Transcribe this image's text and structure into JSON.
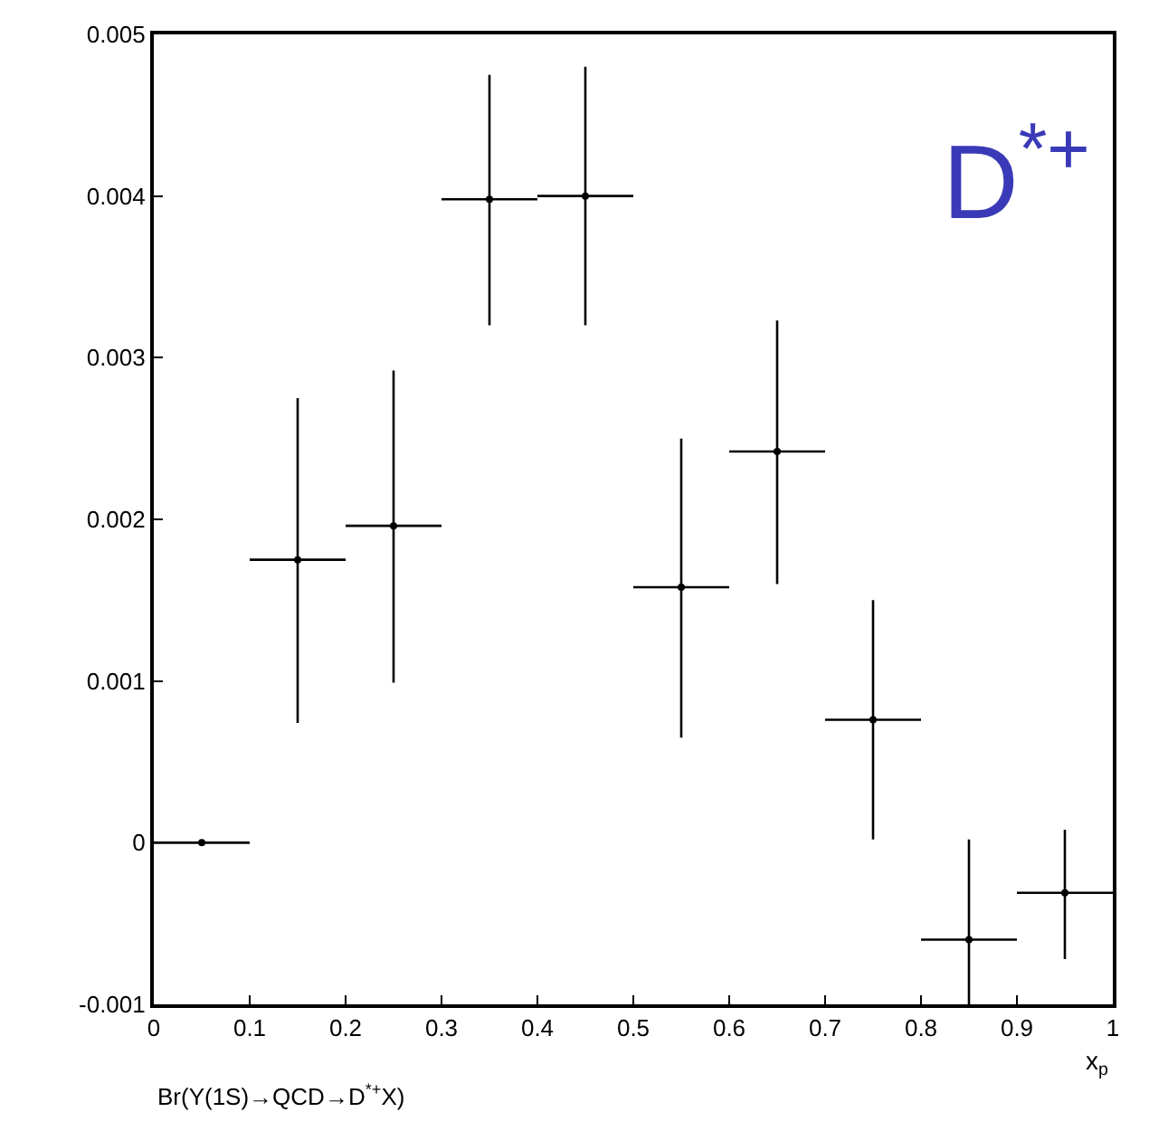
{
  "chart_data": {
    "type": "scatter",
    "xlabel": "x$_{p}$",
    "annotations": [
      "D$^{*+}$",
      "Br(Υ(1S)→QCD→D$^{*+}$X)"
    ],
    "x": [
      0.05,
      0.15,
      0.25,
      0.35,
      0.45,
      0.55,
      0.65,
      0.75,
      0.85,
      0.95
    ],
    "series": [
      {
        "color": "#000000",
        "values": [
          0.0,
          0.00175,
          0.00196,
          0.00398,
          0.004,
          0.00158,
          0.00242,
          0.00076,
          -0.0006,
          -0.00031
        ],
        "errors": [
          null,
          [
            0.00074,
            0.00275
          ],
          [
            0.00099,
            0.00292
          ],
          [
            0.0032,
            0.00475
          ],
          [
            0.0032,
            0.0048
          ],
          [
            0.00065,
            0.0025
          ],
          [
            0.0016,
            0.00323
          ],
          [
            2e-05,
            0.0015
          ],
          [
            -0.001,
            2e-05
          ],
          [
            -0.00072,
            8e-05
          ]
        ],
        "xerrors": [
          0.05,
          0.05,
          0.05,
          0.05,
          0.05,
          0.05,
          0.05,
          0.05,
          0.05,
          0.05
        ]
      }
    ],
    "xlim": [
      0,
      1
    ],
    "ylim": [
      -0.001,
      0.005
    ],
    "xticks": [
      0,
      0.1,
      0.2,
      0.3,
      0.4,
      0.5,
      0.6,
      0.7,
      0.8,
      0.9,
      1
    ],
    "yticks": [
      -0.001,
      0,
      0.001,
      0.002,
      0.003,
      0.004,
      0.005
    ],
    "marker": "circle"
  }
}
